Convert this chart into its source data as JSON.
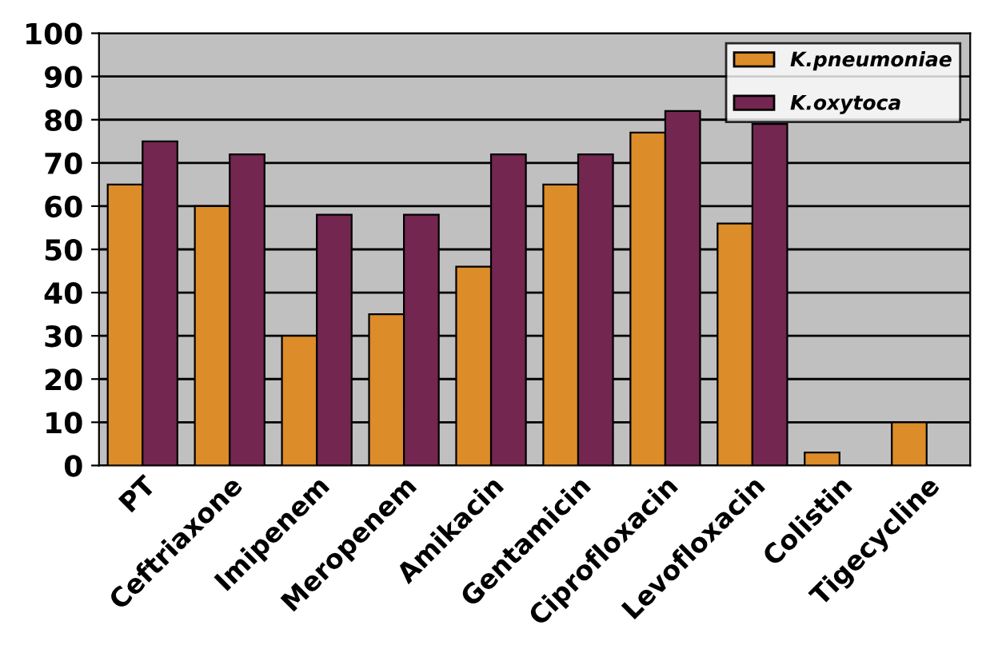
{
  "chart_data": {
    "type": "bar",
    "categories": [
      "PT",
      "Ceftriaxone",
      "Imipenem",
      "Meropenem",
      "Amikacin",
      "Gentamicin",
      "Ciprofloxacin",
      "Levofloxacin",
      "Colistin",
      "Tigecycline"
    ],
    "series": [
      {
        "name": "K.pneumoniae",
        "color": "#dc8c28",
        "values": [
          65,
          60,
          30,
          35,
          46,
          65,
          77,
          56,
          3,
          10
        ]
      },
      {
        "name": "K.oxytoca",
        "color": "#722650",
        "values": [
          75,
          72,
          58,
          58,
          72,
          72,
          82,
          79,
          null,
          null
        ]
      }
    ],
    "ylim": [
      0,
      100
    ],
    "yticks": [
      0,
      10,
      20,
      30,
      40,
      50,
      60,
      70,
      80,
      90,
      100
    ],
    "grid": "y",
    "legend": "top right"
  }
}
